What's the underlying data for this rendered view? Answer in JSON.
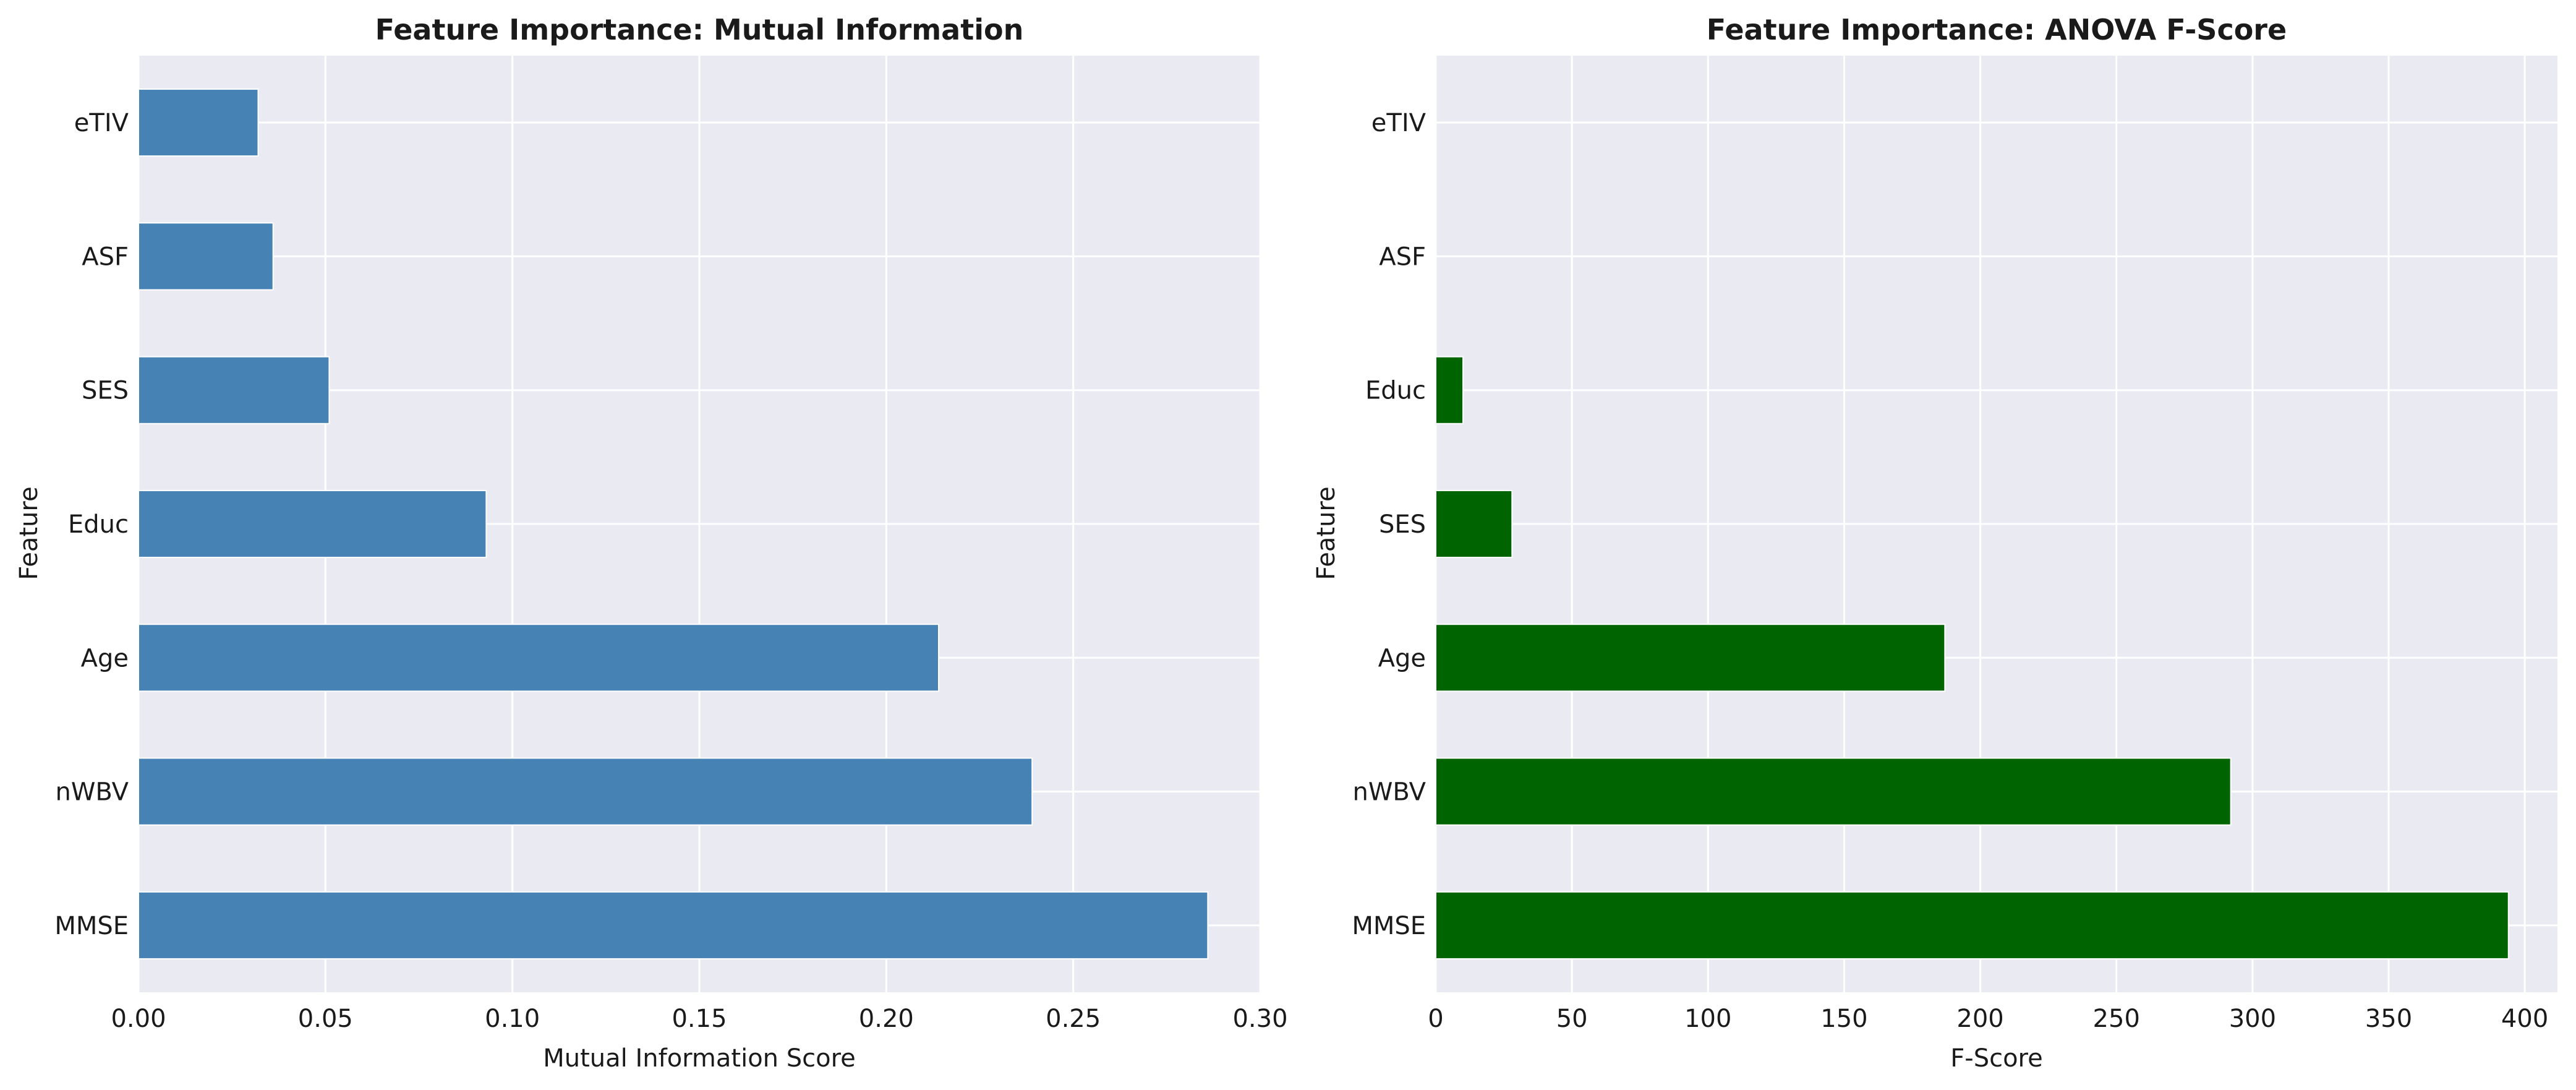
{
  "chart_data": [
    {
      "type": "bar",
      "orientation": "horizontal",
      "title": "Feature Importance: Mutual Information",
      "xlabel": "Mutual Information Score",
      "ylabel": "Feature",
      "categories": [
        "MMSE",
        "nWBV",
        "Age",
        "Educ",
        "SES",
        "ASF",
        "eTIV"
      ],
      "values": [
        0.286,
        0.239,
        0.214,
        0.093,
        0.051,
        0.036,
        0.032
      ],
      "xlim": [
        0,
        0.3
      ],
      "xticks": [
        0.0,
        0.05,
        0.1,
        0.15,
        0.2,
        0.25,
        0.3
      ],
      "xtick_labels": [
        "0.00",
        "0.05",
        "0.10",
        "0.15",
        "0.20",
        "0.25",
        "0.30"
      ],
      "bar_color": "#4682b4",
      "grid": true,
      "background_color": "#eaeaf2"
    },
    {
      "type": "bar",
      "orientation": "horizontal",
      "title": "Feature Importance: ANOVA F-Score",
      "xlabel": "F-Score",
      "ylabel": "Feature",
      "categories": [
        "MMSE",
        "nWBV",
        "Age",
        "SES",
        "Educ",
        "ASF",
        "eTIV"
      ],
      "values": [
        394,
        292,
        187,
        28,
        10,
        0,
        0
      ],
      "xlim": [
        0,
        412
      ],
      "xticks": [
        0,
        50,
        100,
        150,
        200,
        250,
        300,
        350,
        400
      ],
      "xtick_labels": [
        "0",
        "50",
        "100",
        "150",
        "200",
        "250",
        "300",
        "350",
        "400"
      ],
      "bar_color": "#006400",
      "grid": true,
      "background_color": "#eaeaf2"
    }
  ]
}
